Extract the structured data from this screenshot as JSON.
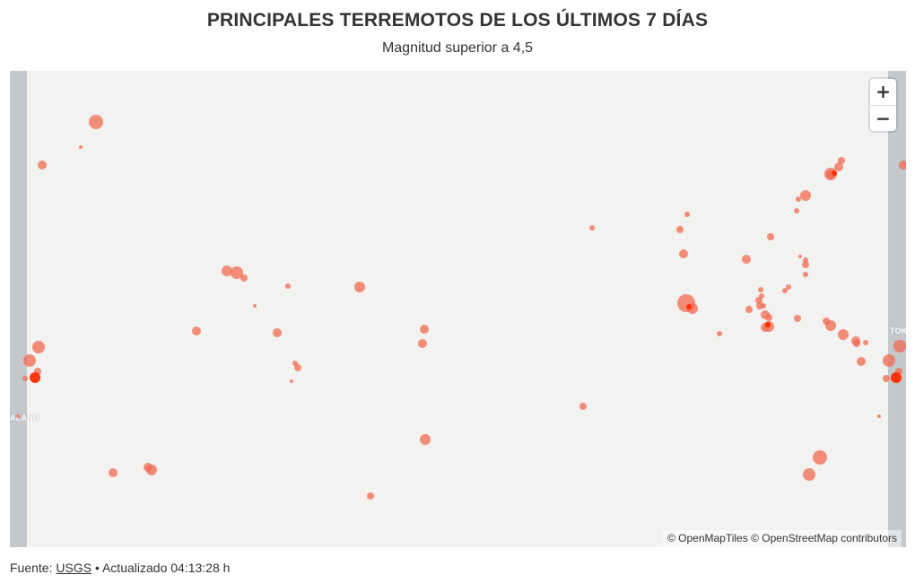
{
  "header": {
    "title": "PRINCIPALES TERREMOTOS DE LOS ÚLTIMOS 7 DÍAS",
    "subtitle": "Magnitud superior a 4,5"
  },
  "map": {
    "zoom_in_label": "+",
    "zoom_out_label": "−",
    "labels": {
      "left": "ALAND",
      "right": "TOK"
    },
    "attribution": "© OpenMapTiles © OpenStreetMap contributors",
    "colors": {
      "background": "#f2f2f0",
      "land": "#c4c8cb",
      "quake": "#f06a50",
      "quake_strong": "#ff2a00"
    }
  },
  "footer": {
    "source_label": "Fuente:",
    "source_link": "USGS",
    "updated": "• Actualizado 04:13:28 h"
  }
}
